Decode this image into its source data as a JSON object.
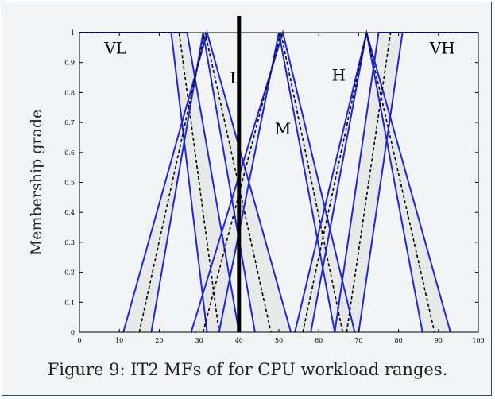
{
  "caption": "Figure 9: IT2 MFs of for CPU workload ranges.",
  "chart_data": {
    "type": "line",
    "title": "",
    "xlabel": "",
    "ylabel": "Membership grade",
    "xlim": [
      0,
      100
    ],
    "ylim": [
      0,
      1
    ],
    "x_ticks": [
      "0",
      "10",
      "20",
      "30",
      "40",
      "50",
      "60",
      "70",
      "80",
      "90",
      "100"
    ],
    "y_ticks": [
      "0",
      "0.1",
      "0.2",
      "0.3",
      "0.4",
      "0.5",
      "0.6",
      "0.7",
      "0.8",
      "0.9",
      "1"
    ],
    "grid": false,
    "vertical_line_x": 40,
    "colors": {
      "outer": "#1f27d6",
      "mean": "#000000",
      "fill": "#e6e6e6"
    },
    "mfs": [
      {
        "label": "VL",
        "label_pos": [
          9,
          0.93
        ],
        "umf": [
          [
            0,
            1
          ],
          [
            27,
            1
          ],
          [
            40,
            0
          ]
        ],
        "lmf": [
          [
            0,
            1
          ],
          [
            23,
            1
          ],
          [
            32,
            0
          ]
        ],
        "mean": [
          [
            0,
            1
          ],
          [
            25,
            1
          ],
          [
            35,
            0
          ]
        ]
      },
      {
        "label": "L",
        "label_pos": [
          39,
          0.83
        ],
        "umf": [
          [
            11,
            0
          ],
          [
            32,
            1
          ],
          [
            53,
            0
          ]
        ],
        "lmf": [
          [
            18,
            0
          ],
          [
            31,
            1
          ],
          [
            44,
            0
          ]
        ],
        "mean": [
          [
            15,
            0
          ],
          [
            31.5,
            1
          ],
          [
            48,
            0
          ]
        ]
      },
      {
        "label": "M",
        "label_pos": [
          51,
          0.66
        ],
        "umf": [
          [
            28,
            0
          ],
          [
            51,
            1
          ],
          [
            69,
            0
          ]
        ],
        "lmf": [
          [
            35,
            0
          ],
          [
            50,
            1
          ],
          [
            64,
            0
          ]
        ],
        "mean": [
          [
            31,
            0
          ],
          [
            50.5,
            1
          ],
          [
            66,
            0
          ]
        ]
      },
      {
        "label": "H",
        "label_pos": [
          65,
          0.84
        ],
        "umf": [
          [
            54,
            0
          ],
          [
            72,
            1
          ],
          [
            93,
            0
          ]
        ],
        "lmf": [
          [
            58,
            0
          ],
          [
            72,
            1
          ],
          [
            86,
            0
          ]
        ],
        "mean": [
          [
            56,
            0
          ],
          [
            72,
            1
          ],
          [
            89,
            0
          ]
        ]
      },
      {
        "label": "VH",
        "label_pos": [
          91,
          0.93
        ],
        "umf": [
          [
            64,
            0
          ],
          [
            75,
            1
          ],
          [
            100,
            1
          ]
        ],
        "lmf": [
          [
            70,
            0
          ],
          [
            81,
            1
          ],
          [
            100,
            1
          ]
        ],
        "mean": [
          [
            67,
            0
          ],
          [
            78,
            1
          ],
          [
            100,
            1
          ]
        ]
      }
    ]
  }
}
